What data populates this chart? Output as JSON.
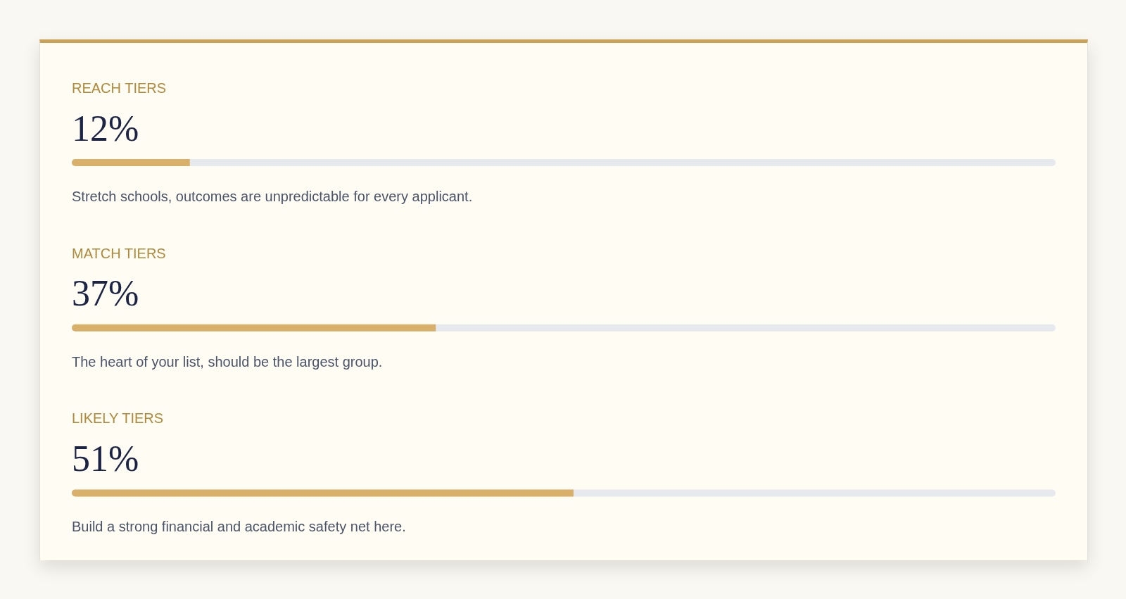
{
  "chart_data": {
    "type": "bar",
    "orientation": "horizontal",
    "categories": [
      "REACH TIERS",
      "MATCH TIERS",
      "LIKELY TIERS"
    ],
    "values": [
      12,
      37,
      51
    ],
    "value_labels": [
      "12%",
      "37%",
      "51%"
    ],
    "color": "#d9b06a",
    "xlim": [
      0,
      100
    ],
    "annotations": [
      "Stretch schools, outcomes are unpredictable for every applicant.",
      "The heart of your list, should be the largest group.",
      "Build a strong financial and academic safety net here."
    ]
  }
}
